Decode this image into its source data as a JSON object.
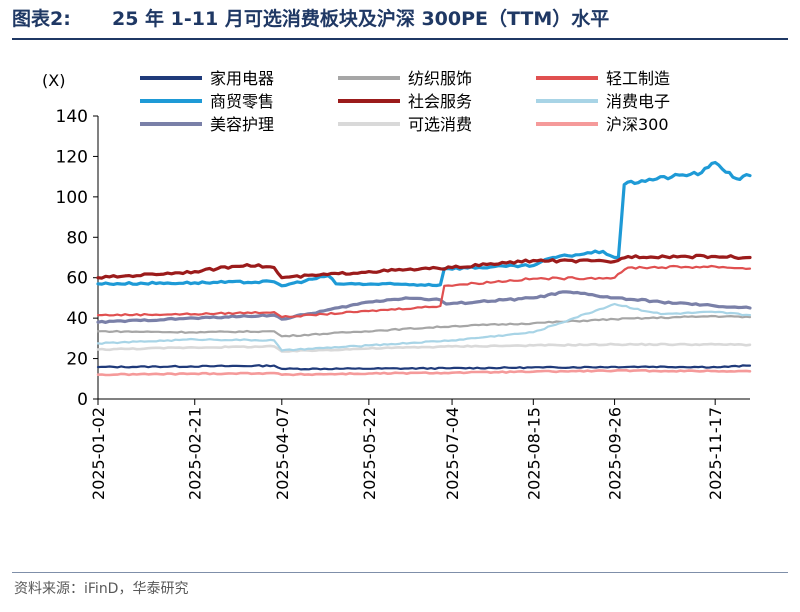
{
  "figure": {
    "label": "图表2:",
    "title": "25 年 1-11 月可选消费板块及沪深 300PE（TTM）水平",
    "source": "资料来源：iFinD，华泰研究"
  },
  "chart_data": {
    "type": "line",
    "y_unit": "(X)",
    "ylim": [
      0,
      140
    ],
    "yticks": [
      0,
      20,
      40,
      60,
      80,
      100,
      120,
      140
    ],
    "x_start": "2025-01-02",
    "x_end": "2025-12-05",
    "xtick_labels": [
      "2025-01-02",
      "2025-02-21",
      "2025-04-07",
      "2025-05-22",
      "2025-07-04",
      "2025-08-15",
      "2025-09-26",
      "2025-11-17"
    ],
    "grid": false,
    "legend_position": "top",
    "series": [
      {
        "name": "家用电器",
        "color": "#1f3a7a",
        "width": 2.2,
        "points": [
          [
            "2025-01-02",
            15.8
          ],
          [
            "2025-03-01",
            16.2
          ],
          [
            "2025-04-03",
            16.5
          ],
          [
            "2025-04-07",
            14.9
          ],
          [
            "2025-05-15",
            15.0
          ],
          [
            "2025-07-01",
            15.2
          ],
          [
            "2025-08-20",
            15.6
          ],
          [
            "2025-10-10",
            16.0
          ],
          [
            "2025-11-20",
            15.8
          ],
          [
            "2025-12-05",
            16.5
          ]
        ]
      },
      {
        "name": "纺织服饰",
        "color": "#a6a6a6",
        "width": 2.2,
        "points": [
          [
            "2025-01-02",
            33.5
          ],
          [
            "2025-02-20",
            33.0
          ],
          [
            "2025-04-03",
            33.5
          ],
          [
            "2025-04-07",
            31.0
          ],
          [
            "2025-05-20",
            33.5
          ],
          [
            "2025-07-04",
            36.0
          ],
          [
            "2025-08-15",
            37.5
          ],
          [
            "2025-09-26",
            39.5
          ],
          [
            "2025-11-17",
            41.0
          ],
          [
            "2025-12-05",
            40.5
          ]
        ]
      },
      {
        "name": "轻工制造",
        "color": "#e05050",
        "width": 2.2,
        "points": [
          [
            "2025-01-02",
            41.5
          ],
          [
            "2025-02-21",
            42.0
          ],
          [
            "2025-04-03",
            43.0
          ],
          [
            "2025-04-07",
            40.5
          ],
          [
            "2025-05-22",
            43.5
          ],
          [
            "2025-06-28",
            46.0
          ],
          [
            "2025-06-30",
            56.0
          ],
          [
            "2025-08-15",
            59.5
          ],
          [
            "2025-09-26",
            60.0
          ],
          [
            "2025-10-03",
            65.0
          ],
          [
            "2025-11-17",
            65.5
          ],
          [
            "2025-12-05",
            64.5
          ]
        ]
      },
      {
        "name": "商贸零售",
        "color": "#1e9ad6",
        "width": 3.2,
        "points": [
          [
            "2025-01-02",
            57.0
          ],
          [
            "2025-02-21",
            57.5
          ],
          [
            "2025-04-03",
            58.0
          ],
          [
            "2025-04-07",
            56.0
          ],
          [
            "2025-05-01",
            61.0
          ],
          [
            "2025-05-05",
            57.0
          ],
          [
            "2025-06-28",
            56.5
          ],
          [
            "2025-06-30",
            64.5
          ],
          [
            "2025-08-15",
            66.0
          ],
          [
            "2025-08-25",
            70.0
          ],
          [
            "2025-09-20",
            73.0
          ],
          [
            "2025-09-26",
            70.0
          ],
          [
            "2025-09-28",
            70.0
          ],
          [
            "2025-10-01",
            106.0
          ],
          [
            "2025-10-10",
            108.0
          ],
          [
            "2025-11-10",
            112.0
          ],
          [
            "2025-11-17",
            117.0
          ],
          [
            "2025-11-28",
            109.0
          ],
          [
            "2025-12-05",
            110.5
          ]
        ]
      },
      {
        "name": "社会服务",
        "color": "#9b1b1b",
        "width": 3.2,
        "points": [
          [
            "2025-01-02",
            60.0
          ],
          [
            "2025-02-21",
            63.0
          ],
          [
            "2025-03-20",
            66.5
          ],
          [
            "2025-04-03",
            65.0
          ],
          [
            "2025-04-07",
            60.0
          ],
          [
            "2025-05-22",
            63.0
          ],
          [
            "2025-07-04",
            65.0
          ],
          [
            "2025-08-15",
            68.5
          ],
          [
            "2025-09-26",
            68.0
          ],
          [
            "2025-10-03",
            70.5
          ],
          [
            "2025-11-17",
            70.5
          ],
          [
            "2025-12-05",
            70.0
          ]
        ]
      },
      {
        "name": "消费电子",
        "color": "#a8d4e6",
        "width": 2.2,
        "points": [
          [
            "2025-01-02",
            27.5
          ],
          [
            "2025-02-21",
            29.5
          ],
          [
            "2025-04-03",
            29.0
          ],
          [
            "2025-04-07",
            24.0
          ],
          [
            "2025-05-22",
            26.5
          ],
          [
            "2025-07-04",
            29.0
          ],
          [
            "2025-08-15",
            33.0
          ],
          [
            "2025-09-05",
            40.0
          ],
          [
            "2025-09-26",
            47.0
          ],
          [
            "2025-10-20",
            42.0
          ],
          [
            "2025-11-17",
            43.0
          ],
          [
            "2025-12-05",
            41.5
          ]
        ]
      },
      {
        "name": "美容护理",
        "color": "#7a80a8",
        "width": 3.2,
        "points": [
          [
            "2025-01-02",
            38.0
          ],
          [
            "2025-02-21",
            40.0
          ],
          [
            "2025-04-03",
            41.5
          ],
          [
            "2025-04-07",
            39.5
          ],
          [
            "2025-05-22",
            48.0
          ],
          [
            "2025-06-10",
            50.0
          ],
          [
            "2025-06-28",
            49.0
          ],
          [
            "2025-07-01",
            47.0
          ],
          [
            "2025-08-15",
            50.0
          ],
          [
            "2025-09-01",
            53.0
          ],
          [
            "2025-09-26",
            50.0
          ],
          [
            "2025-10-20",
            48.0
          ],
          [
            "2025-11-17",
            46.0
          ],
          [
            "2025-12-05",
            45.0
          ]
        ]
      },
      {
        "name": "可选消费",
        "color": "#d9d9d9",
        "width": 2.6,
        "points": [
          [
            "2025-01-02",
            24.5
          ],
          [
            "2025-02-21",
            25.5
          ],
          [
            "2025-04-03",
            26.0
          ],
          [
            "2025-04-07",
            23.5
          ],
          [
            "2025-05-22",
            25.0
          ],
          [
            "2025-07-04",
            26.0
          ],
          [
            "2025-08-15",
            26.5
          ],
          [
            "2025-09-26",
            27.0
          ],
          [
            "2025-11-17",
            27.0
          ],
          [
            "2025-12-05",
            26.8
          ]
        ]
      },
      {
        "name": "沪深300",
        "color": "#f59a9a",
        "width": 2.6,
        "points": [
          [
            "2025-01-02",
            12.0
          ],
          [
            "2025-02-21",
            12.5
          ],
          [
            "2025-04-03",
            12.8
          ],
          [
            "2025-04-07",
            12.0
          ],
          [
            "2025-05-22",
            12.6
          ],
          [
            "2025-07-04",
            13.0
          ],
          [
            "2025-08-15",
            13.5
          ],
          [
            "2025-09-26",
            14.0
          ],
          [
            "2025-11-17",
            13.8
          ],
          [
            "2025-12-05",
            13.7
          ]
        ]
      }
    ]
  }
}
